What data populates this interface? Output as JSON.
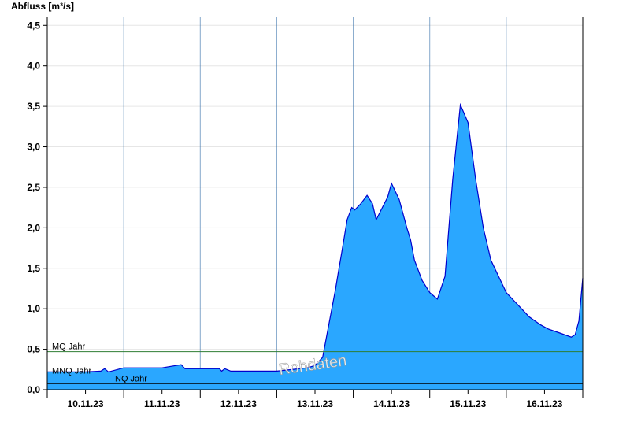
{
  "chart_data": {
    "type": "area",
    "ylabel": "Abfluss [m³/s]",
    "ylim": [
      0,
      4.6
    ],
    "yticks": [
      0,
      0.5,
      1.0,
      1.5,
      2.0,
      2.5,
      3.0,
      3.5,
      4.0,
      4.5
    ],
    "ytick_labels": [
      "0,0",
      "0,5",
      "1,0",
      "1,5",
      "2,0",
      "2,5",
      "3,0",
      "3,5",
      "4,0",
      "4,5"
    ],
    "xlim": [
      -0.5,
      6.5
    ],
    "xtick_labels": [
      "10.11.23",
      "11.11.23",
      "12.11.23",
      "13.11.23",
      "14.11.23",
      "15.11.23",
      "16.11.23"
    ],
    "grid": true,
    "series_color": "#2aa7ff",
    "series_line_color": "#0000cc",
    "watermark": "Rohdaten",
    "reference_lines": [
      {
        "label": "MQ Jahr",
        "value": 0.47,
        "color": "#2e7d32"
      },
      {
        "label": "MNQ Jahr",
        "value": 0.17,
        "color": "#000000"
      },
      {
        "label": "NQ Jahr",
        "value": 0.075,
        "color": "#000000"
      }
    ],
    "x": [
      -0.5,
      0.0,
      0.2,
      0.25,
      0.3,
      0.5,
      1.0,
      1.25,
      1.28,
      1.3,
      1.35,
      1.5,
      1.75,
      1.78,
      1.82,
      1.9,
      2.0,
      2.5,
      2.9,
      3.0,
      3.1,
      3.2,
      3.27,
      3.3,
      3.35,
      3.42,
      3.48,
      3.52,
      3.6,
      3.68,
      3.75,
      3.8,
      3.88,
      3.95,
      4.0,
      4.1,
      4.2,
      4.25,
      4.3,
      4.4,
      4.5,
      4.6,
      4.7,
      4.8,
      4.9,
      5.0,
      5.1,
      5.2,
      5.3,
      5.4,
      5.5,
      5.6,
      5.7,
      5.8,
      5.95,
      6.05,
      6.2,
      6.35,
      6.4,
      6.45,
      6.5
    ],
    "values": [
      0.22,
      0.22,
      0.23,
      0.26,
      0.22,
      0.27,
      0.27,
      0.31,
      0.28,
      0.26,
      0.26,
      0.26,
      0.26,
      0.23,
      0.26,
      0.23,
      0.23,
      0.23,
      0.27,
      0.3,
      0.4,
      0.9,
      1.25,
      1.42,
      1.7,
      2.1,
      2.25,
      2.22,
      2.3,
      2.4,
      2.3,
      2.1,
      2.25,
      2.38,
      2.55,
      2.35,
      2.0,
      1.85,
      1.6,
      1.35,
      1.2,
      1.12,
      1.4,
      2.6,
      3.52,
      3.3,
      2.6,
      2.0,
      1.6,
      1.4,
      1.2,
      1.1,
      1.0,
      0.9,
      0.8,
      0.75,
      0.7,
      0.65,
      0.68,
      0.85,
      1.38
    ]
  }
}
